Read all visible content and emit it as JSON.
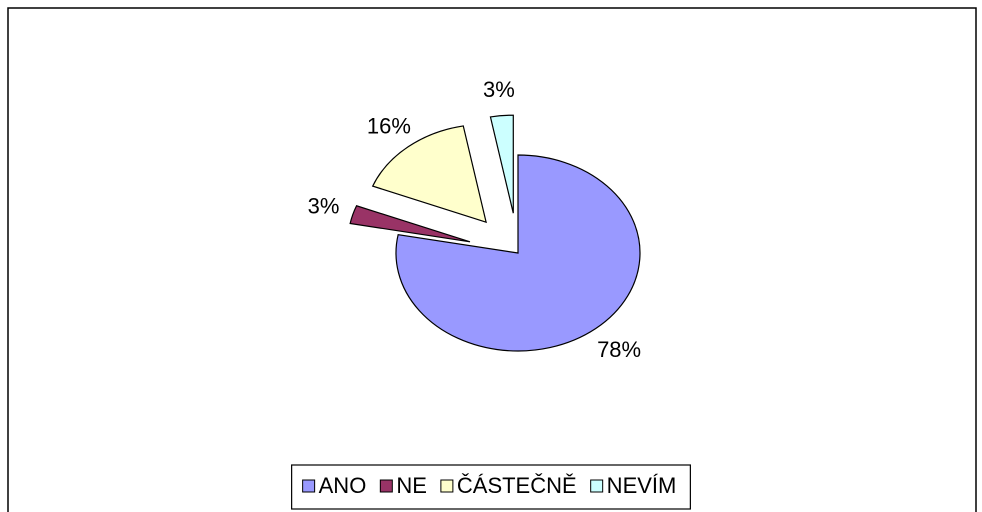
{
  "chart_data": {
    "type": "pie",
    "categories": [
      "ANO",
      "NE",
      "ČÁSTEČNĚ",
      "NEVÍM"
    ],
    "values": [
      78,
      3,
      16,
      3
    ],
    "value_labels": [
      "78%",
      "3%",
      "16%",
      "3%"
    ],
    "colors": [
      "#9999ff",
      "#993366",
      "#ffffcc",
      "#ccffff"
    ],
    "legend": "bottom"
  }
}
